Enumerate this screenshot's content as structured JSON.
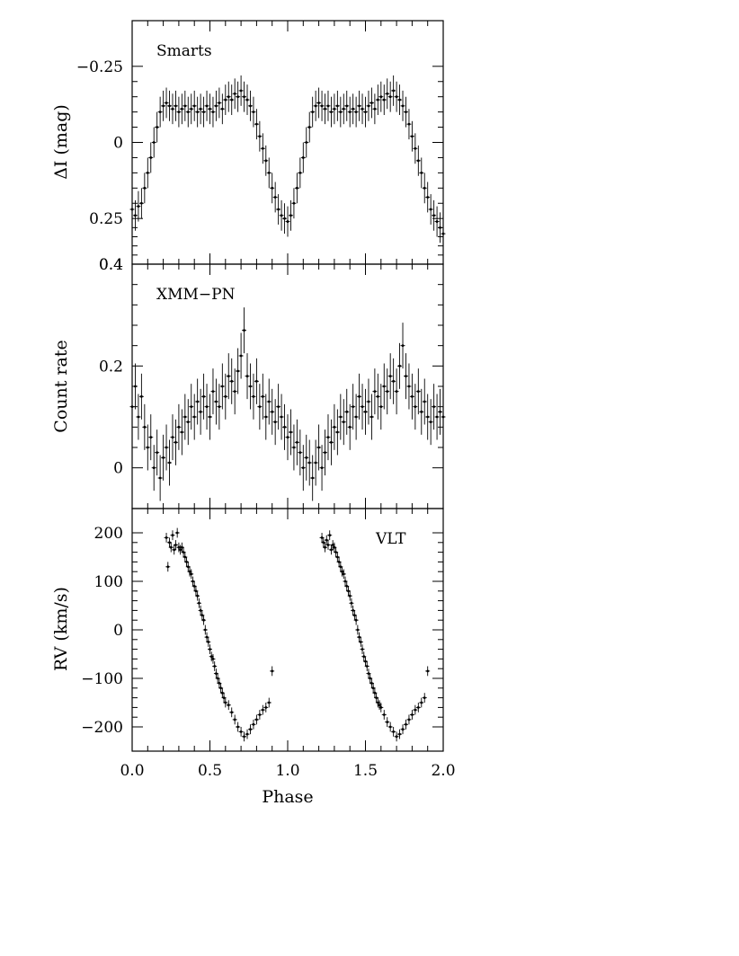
{
  "chart_data": [
    {
      "type": "scatter",
      "panel_label": "Smarts",
      "ylabel": "ΔI (mag)",
      "xlabel": "",
      "xlim": [
        0,
        2.0
      ],
      "ylim": [
        0.4,
        -0.4
      ],
      "y_inverted": true,
      "yticks": [
        -0.25,
        0,
        0.25,
        0.4
      ],
      "ytick_labels": [
        "−0.25",
        "0",
        "0.25",
        "0.4"
      ],
      "error_bars": true,
      "series": [
        {
          "x": [
            0.0,
            0.02,
            0.04,
            0.06,
            0.08,
            0.1,
            0.12,
            0.14,
            0.16,
            0.18,
            0.2,
            0.22,
            0.24,
            0.26,
            0.28,
            0.3,
            0.32,
            0.34,
            0.36,
            0.38,
            0.4,
            0.42,
            0.44,
            0.46,
            0.48,
            0.5,
            0.52,
            0.54,
            0.56,
            0.58,
            0.6,
            0.62,
            0.64,
            0.66,
            0.68,
            0.7,
            0.72,
            0.74,
            0.76,
            0.78,
            0.8,
            0.82,
            0.84,
            0.86,
            0.88,
            0.9,
            0.92,
            0.94,
            0.96,
            0.98,
            1.0,
            1.02,
            1.04,
            1.06,
            1.08,
            1.1,
            1.12,
            1.14,
            1.16,
            1.18,
            1.2,
            1.22,
            1.24,
            1.26,
            1.28,
            1.3,
            1.32,
            1.34,
            1.36,
            1.38,
            1.4,
            1.42,
            1.44,
            1.46,
            1.48,
            1.5,
            1.52,
            1.54,
            1.56,
            1.58,
            1.6,
            1.62,
            1.64,
            1.66,
            1.68,
            1.7,
            1.72,
            1.74,
            1.76,
            1.78,
            1.8,
            1.82,
            1.84,
            1.86,
            1.88,
            1.9,
            1.92,
            1.94,
            1.96,
            1.98,
            2.0
          ],
          "y": [
            0.22,
            0.24,
            0.21,
            0.2,
            0.15,
            0.1,
            0.05,
            0.0,
            -0.05,
            -0.1,
            -0.12,
            -0.13,
            -0.12,
            -0.11,
            -0.12,
            -0.1,
            -0.11,
            -0.12,
            -0.1,
            -0.11,
            -0.12,
            -0.1,
            -0.11,
            -0.1,
            -0.12,
            -0.11,
            -0.1,
            -0.12,
            -0.13,
            -0.11,
            -0.14,
            -0.15,
            -0.14,
            -0.16,
            -0.15,
            -0.17,
            -0.15,
            -0.14,
            -0.12,
            -0.1,
            -0.06,
            -0.02,
            0.02,
            0.06,
            0.1,
            0.15,
            0.18,
            0.22,
            0.24,
            0.25,
            0.26,
            0.24,
            0.2,
            0.15,
            0.1,
            0.05,
            0.0,
            -0.05,
            -0.1,
            -0.12,
            -0.13,
            -0.12,
            -0.11,
            -0.12,
            -0.1,
            -0.11,
            -0.12,
            -0.1,
            -0.11,
            -0.12,
            -0.1,
            -0.11,
            -0.1,
            -0.12,
            -0.11,
            -0.1,
            -0.12,
            -0.13,
            -0.11,
            -0.14,
            -0.15,
            -0.14,
            -0.16,
            -0.15,
            -0.17,
            -0.15,
            -0.14,
            -0.12,
            -0.1,
            -0.06,
            -0.02,
            0.02,
            0.06,
            0.1,
            0.15,
            0.18,
            0.22,
            0.24,
            0.26,
            0.28,
            0.3
          ],
          "yerr": 0.05
        }
      ]
    },
    {
      "type": "scatter",
      "panel_label": "XMM−PN",
      "ylabel": "Count rate",
      "xlabel": "",
      "xlim": [
        0,
        2.0
      ],
      "ylim": [
        -0.08,
        0.4
      ],
      "yticks": [
        0,
        0.2,
        0.4
      ],
      "ytick_labels": [
        "0",
        "0.2",
        "0.4"
      ],
      "error_bars": true,
      "series": [
        {
          "x": [
            0.0,
            0.02,
            0.04,
            0.06,
            0.08,
            0.1,
            0.12,
            0.14,
            0.16,
            0.18,
            0.2,
            0.22,
            0.24,
            0.26,
            0.28,
            0.3,
            0.32,
            0.34,
            0.36,
            0.38,
            0.4,
            0.42,
            0.44,
            0.46,
            0.48,
            0.5,
            0.52,
            0.54,
            0.56,
            0.58,
            0.6,
            0.62,
            0.64,
            0.66,
            0.68,
            0.7,
            0.72,
            0.74,
            0.76,
            0.78,
            0.8,
            0.82,
            0.84,
            0.86,
            0.88,
            0.9,
            0.92,
            0.94,
            0.96,
            0.98,
            1.0,
            1.02,
            1.04,
            1.06,
            1.08,
            1.1,
            1.12,
            1.14,
            1.16,
            1.18,
            1.2,
            1.22,
            1.24,
            1.26,
            1.28,
            1.3,
            1.32,
            1.34,
            1.36,
            1.38,
            1.4,
            1.42,
            1.44,
            1.46,
            1.48,
            1.5,
            1.52,
            1.54,
            1.56,
            1.58,
            1.6,
            1.62,
            1.64,
            1.66,
            1.68,
            1.7,
            1.72,
            1.74,
            1.76,
            1.78,
            1.8,
            1.82,
            1.84,
            1.86,
            1.88,
            1.9,
            1.92,
            1.94,
            1.96,
            1.98,
            2.0
          ],
          "y": [
            0.12,
            0.16,
            0.1,
            0.14,
            0.08,
            0.04,
            0.06,
            0.0,
            0.03,
            -0.02,
            0.02,
            0.04,
            0.01,
            0.06,
            0.05,
            0.08,
            0.07,
            0.1,
            0.09,
            0.12,
            0.1,
            0.13,
            0.11,
            0.14,
            0.12,
            0.1,
            0.15,
            0.13,
            0.12,
            0.16,
            0.14,
            0.18,
            0.17,
            0.15,
            0.19,
            0.22,
            0.27,
            0.18,
            0.16,
            0.14,
            0.17,
            0.12,
            0.14,
            0.1,
            0.13,
            0.11,
            0.09,
            0.12,
            0.1,
            0.08,
            0.06,
            0.07,
            0.04,
            0.05,
            0.03,
            0.0,
            0.02,
            0.01,
            -0.02,
            0.01,
            0.04,
            0.0,
            0.03,
            0.06,
            0.05,
            0.08,
            0.07,
            0.1,
            0.09,
            0.11,
            0.08,
            0.12,
            0.1,
            0.14,
            0.12,
            0.11,
            0.13,
            0.1,
            0.15,
            0.14,
            0.12,
            0.16,
            0.15,
            0.18,
            0.17,
            0.15,
            0.2,
            0.24,
            0.18,
            0.16,
            0.14,
            0.12,
            0.15,
            0.11,
            0.13,
            0.1,
            0.09,
            0.12,
            0.1,
            0.11,
            0.1
          ],
          "yerr": 0.045
        }
      ]
    },
    {
      "type": "scatter",
      "panel_label": "VLT",
      "ylabel": "RV (km/s)",
      "xlabel": "Phase",
      "xlim": [
        0,
        2.0
      ],
      "ylim": [
        -250,
        250
      ],
      "yticks": [
        -200,
        -100,
        0,
        100,
        200
      ],
      "ytick_labels": [
        "−200",
        "−100",
        "0",
        "100",
        "200"
      ],
      "xticks": [
        0,
        0.5,
        1.0,
        1.5,
        2.0
      ],
      "xtick_labels": [
        "0.0",
        "0.5",
        "1.0",
        "1.5",
        "2.0"
      ],
      "error_bars": true,
      "series": [
        {
          "x": [
            0.22,
            0.23,
            0.24,
            0.25,
            0.26,
            0.27,
            0.28,
            0.29,
            0.3,
            0.31,
            0.32,
            0.33,
            0.34,
            0.35,
            0.36,
            0.37,
            0.38,
            0.39,
            0.4,
            0.41,
            0.42,
            0.43,
            0.44,
            0.45,
            0.46,
            0.47,
            0.48,
            0.49,
            0.5,
            0.51,
            0.52,
            0.53,
            0.54,
            0.55,
            0.56,
            0.57,
            0.58,
            0.59,
            0.6,
            0.62,
            0.64,
            0.66,
            0.68,
            0.7,
            0.72,
            0.74,
            0.76,
            0.78,
            0.8,
            0.82,
            0.84,
            0.86,
            0.88,
            0.9,
            1.22,
            1.23,
            1.24,
            1.25,
            1.26,
            1.27,
            1.28,
            1.29,
            1.3,
            1.31,
            1.32,
            1.33,
            1.34,
            1.35,
            1.36,
            1.37,
            1.38,
            1.39,
            1.4,
            1.41,
            1.42,
            1.43,
            1.44,
            1.45,
            1.46,
            1.47,
            1.48,
            1.49,
            1.5,
            1.51,
            1.52,
            1.53,
            1.54,
            1.55,
            1.56,
            1.57,
            1.58,
            1.59,
            1.6,
            1.62,
            1.64,
            1.66,
            1.68,
            1.7,
            1.72,
            1.74,
            1.76,
            1.78,
            1.8,
            1.82,
            1.84,
            1.86,
            1.88,
            1.9
          ],
          "y": [
            190,
            130,
            180,
            170,
            195,
            165,
            175,
            200,
            170,
            165,
            170,
            160,
            150,
            140,
            130,
            120,
            115,
            100,
            90,
            80,
            70,
            55,
            40,
            30,
            20,
            0,
            -15,
            -25,
            -40,
            -55,
            -60,
            -75,
            -90,
            -100,
            -110,
            -120,
            -130,
            -140,
            -150,
            -155,
            -170,
            -185,
            -200,
            -210,
            -220,
            -215,
            -205,
            -195,
            -185,
            -175,
            -165,
            -160,
            -150,
            -85,
            190,
            180,
            170,
            185,
            175,
            195,
            165,
            175,
            170,
            160,
            150,
            140,
            130,
            120,
            115,
            100,
            90,
            80,
            70,
            55,
            40,
            30,
            20,
            0,
            -15,
            -25,
            -40,
            -55,
            -65,
            -75,
            -90,
            -100,
            -110,
            -120,
            -130,
            -140,
            -150,
            -155,
            -160,
            -175,
            -190,
            -200,
            -210,
            -220,
            -215,
            -205,
            -195,
            -185,
            -175,
            -165,
            -160,
            -150,
            -140,
            -85
          ],
          "yerr": 10
        }
      ]
    }
  ]
}
